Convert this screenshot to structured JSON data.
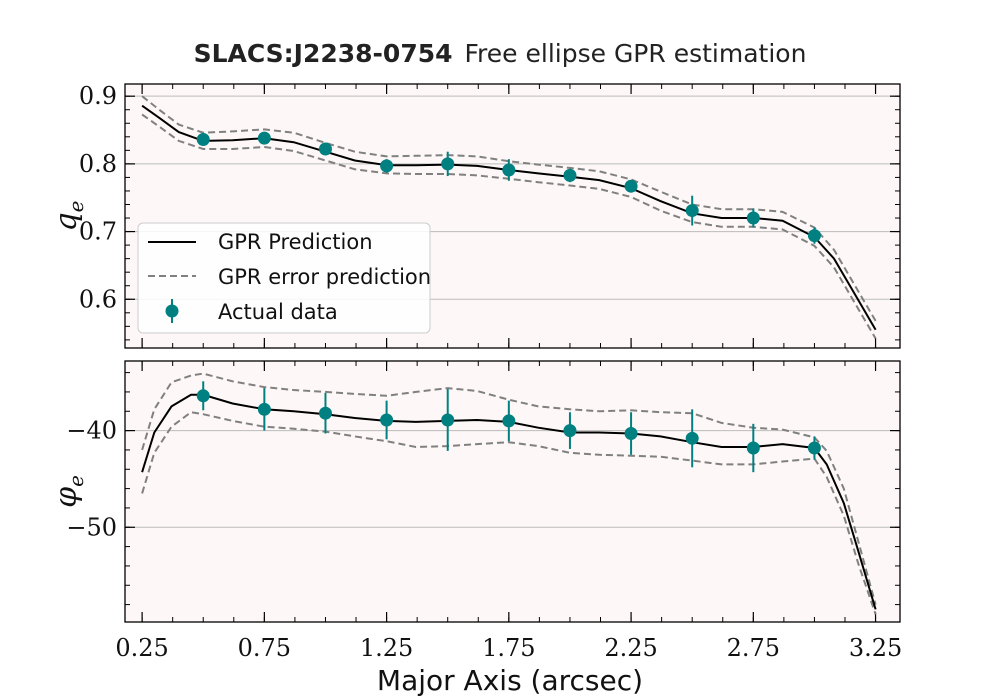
{
  "chart_data": {
    "type": "line",
    "title_bold": "SLACS:J2238-0754",
    "title_rest": "Free ellipse GPR estimation",
    "xlabel": "Major Axis (arcsec)",
    "xlim": [
      0.18,
      3.35
    ],
    "xticks": [
      0.25,
      0.75,
      1.25,
      1.75,
      2.25,
      2.75,
      3.25
    ],
    "xtick_labels": [
      "0.25",
      "0.75",
      "1.25",
      "1.75",
      "2.25",
      "2.75",
      "3.25"
    ],
    "legend": {
      "location": "lower-left",
      "entries": [
        "GPR Prediction",
        "GPR error prediction",
        "Actual data"
      ]
    },
    "colors": {
      "data": "#008080",
      "prediction": "#000000",
      "error": "#808080",
      "background": "#fdf8f7",
      "grid": "#bbbbbb"
    },
    "panels": [
      {
        "ylabel": "q",
        "ylabel_sub": "e",
        "ylim": [
          0.528,
          0.918
        ],
        "yticks": [
          0.6,
          0.7,
          0.8,
          0.9
        ],
        "ytick_labels": [
          "0.6",
          "0.7",
          "0.8",
          "0.9"
        ],
        "grid": true,
        "data": {
          "x": [
            0.5,
            0.75,
            1.0,
            1.25,
            1.5,
            1.75,
            2.0,
            2.25,
            2.5,
            2.75,
            3.0
          ],
          "y": [
            0.836,
            0.838,
            0.822,
            0.797,
            0.8,
            0.791,
            0.783,
            0.767,
            0.731,
            0.72,
            0.694
          ],
          "yerr": [
            0.006,
            0.006,
            0.008,
            0.01,
            0.018,
            0.016,
            0.01,
            0.008,
            0.022,
            0.014,
            0.012
          ]
        },
        "prediction": {
          "x": [
            0.25,
            0.32,
            0.4,
            0.5,
            0.62,
            0.75,
            0.87,
            1.0,
            1.12,
            1.25,
            1.37,
            1.5,
            1.62,
            1.75,
            1.87,
            2.0,
            2.12,
            2.25,
            2.37,
            2.5,
            2.62,
            2.75,
            2.87,
            3.0,
            3.08,
            3.15,
            3.25
          ],
          "y": [
            0.886,
            0.868,
            0.847,
            0.834,
            0.835,
            0.838,
            0.832,
            0.818,
            0.805,
            0.798,
            0.798,
            0.799,
            0.797,
            0.791,
            0.786,
            0.781,
            0.776,
            0.764,
            0.745,
            0.727,
            0.72,
            0.72,
            0.716,
            0.692,
            0.66,
            0.617,
            0.555
          ]
        },
        "error_upper": [
          0.9,
          0.88,
          0.858,
          0.846,
          0.848,
          0.851,
          0.846,
          0.831,
          0.818,
          0.811,
          0.812,
          0.813,
          0.811,
          0.804,
          0.799,
          0.794,
          0.789,
          0.777,
          0.759,
          0.74,
          0.733,
          0.733,
          0.729,
          0.706,
          0.673,
          0.63,
          0.568
        ],
        "error_lower": [
          0.873,
          0.855,
          0.834,
          0.822,
          0.822,
          0.825,
          0.819,
          0.805,
          0.792,
          0.786,
          0.785,
          0.785,
          0.783,
          0.778,
          0.773,
          0.768,
          0.763,
          0.751,
          0.731,
          0.714,
          0.707,
          0.707,
          0.703,
          0.679,
          0.647,
          0.604,
          0.542
        ]
      },
      {
        "ylabel": "φ",
        "ylabel_sub": "e",
        "ylim": [
          -59.8,
          -32.8
        ],
        "yticks": [
          -40,
          -50
        ],
        "ytick_labels": [
          "−40",
          "−50"
        ],
        "grid": true,
        "data": {
          "x": [
            0.5,
            0.75,
            1.0,
            1.25,
            1.5,
            1.75,
            2.0,
            2.25,
            2.5,
            2.75,
            3.0
          ],
          "y": [
            -36.4,
            -37.8,
            -38.2,
            -38.9,
            -38.9,
            -39.0,
            -40.0,
            -40.3,
            -40.8,
            -41.8,
            -41.8
          ],
          "yerr": [
            1.5,
            2.2,
            2.1,
            2.0,
            3.2,
            2.1,
            1.9,
            2.2,
            3.0,
            2.5,
            1.2
          ]
        },
        "prediction": {
          "x": [
            0.25,
            0.3,
            0.37,
            0.45,
            0.5,
            0.62,
            0.75,
            0.87,
            1.0,
            1.12,
            1.25,
            1.37,
            1.5,
            1.62,
            1.75,
            1.87,
            2.0,
            2.12,
            2.25,
            2.37,
            2.5,
            2.62,
            2.75,
            2.87,
            3.0,
            3.05,
            3.12,
            3.18,
            3.25
          ],
          "y": [
            -44.3,
            -40.2,
            -37.5,
            -36.3,
            -36.3,
            -37.2,
            -37.8,
            -38.0,
            -38.3,
            -38.7,
            -39.0,
            -39.1,
            -39.0,
            -38.9,
            -39.1,
            -39.7,
            -40.2,
            -40.2,
            -40.3,
            -40.6,
            -41.2,
            -41.7,
            -41.7,
            -41.4,
            -41.8,
            -43.5,
            -47.5,
            -52.5,
            -58.5
          ]
        },
        "error_upper": [
          -42.0,
          -37.8,
          -35.0,
          -34.3,
          -34.1,
          -34.9,
          -35.5,
          -35.8,
          -36.0,
          -36.2,
          -36.4,
          -36.0,
          -35.6,
          -35.9,
          -36.8,
          -37.5,
          -37.8,
          -38.0,
          -37.9,
          -38.1,
          -38.2,
          -39.2,
          -39.7,
          -39.9,
          -40.7,
          -42.1,
          -46.0,
          -51.5,
          -58.0
        ],
        "error_lower": [
          -46.5,
          -42.3,
          -39.6,
          -38.1,
          -38.3,
          -39.0,
          -39.6,
          -39.8,
          -40.1,
          -40.6,
          -41.1,
          -41.7,
          -41.6,
          -41.4,
          -41.2,
          -41.6,
          -42.3,
          -42.5,
          -42.6,
          -42.7,
          -43.1,
          -43.5,
          -43.5,
          -43.2,
          -42.9,
          -44.8,
          -48.8,
          -53.8,
          -59.0
        ]
      }
    ]
  }
}
